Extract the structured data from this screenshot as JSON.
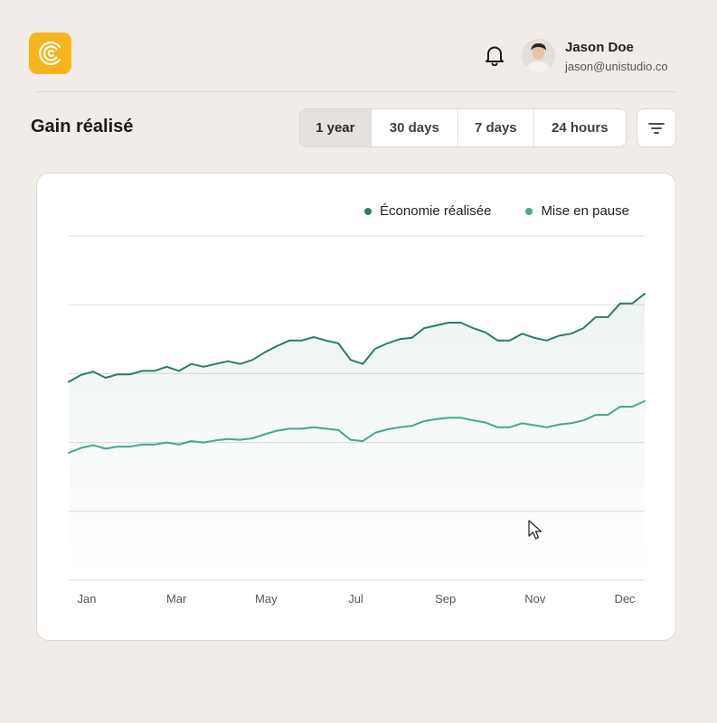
{
  "header": {
    "user_name": "Jason Doe",
    "user_email": "jason@unistudio.co",
    "logo_icon": "concentric-c-logo",
    "notification_icon": "bell-icon",
    "brand_color": "#f6b51c"
  },
  "page": {
    "title": "Gain réalisé"
  },
  "range_tabs": [
    {
      "label": "1 year",
      "active": true
    },
    {
      "label": "30 days",
      "active": false
    },
    {
      "label": "7 days",
      "active": false
    },
    {
      "label": "24 hours",
      "active": false
    }
  ],
  "filter_icon": "filter-lines-icon",
  "chart_data": {
    "type": "line",
    "title": "",
    "xlabel": "",
    "ylabel": "",
    "x_ticks": [
      "Jan",
      "Mar",
      "May",
      "Jul",
      "Sep",
      "Nov",
      "Dec"
    ],
    "ylim": [
      0,
      5
    ],
    "grid": true,
    "legend_position": "top-right",
    "series": [
      {
        "name": "Économie réalisée",
        "color": "#2e7d5e",
        "values": [
          2.88,
          2.98,
          3.03,
          2.94,
          2.99,
          2.99,
          3.04,
          3.04,
          3.1,
          3.04,
          3.14,
          3.1,
          3.14,
          3.18,
          3.14,
          3.2,
          3.31,
          3.4,
          3.48,
          3.48,
          3.53,
          3.48,
          3.44,
          3.2,
          3.14,
          3.36,
          3.44,
          3.5,
          3.52,
          3.66,
          3.7,
          3.74,
          3.74,
          3.66,
          3.6,
          3.48,
          3.48,
          3.58,
          3.52,
          3.48,
          3.55,
          3.58,
          3.66,
          3.82,
          3.82,
          4.02,
          4.02,
          4.16
        ]
      },
      {
        "name": "Mise en pause",
        "color": "#46a98b",
        "values": [
          1.85,
          1.92,
          1.96,
          1.91,
          1.94,
          1.94,
          1.97,
          1.97,
          2.0,
          1.97,
          2.02,
          2.0,
          2.03,
          2.05,
          2.04,
          2.06,
          2.12,
          2.17,
          2.2,
          2.2,
          2.22,
          2.2,
          2.18,
          2.04,
          2.02,
          2.14,
          2.19,
          2.22,
          2.24,
          2.31,
          2.34,
          2.36,
          2.36,
          2.32,
          2.29,
          2.22,
          2.22,
          2.28,
          2.25,
          2.22,
          2.26,
          2.28,
          2.32,
          2.4,
          2.4,
          2.52,
          2.52,
          2.6
        ]
      }
    ]
  }
}
